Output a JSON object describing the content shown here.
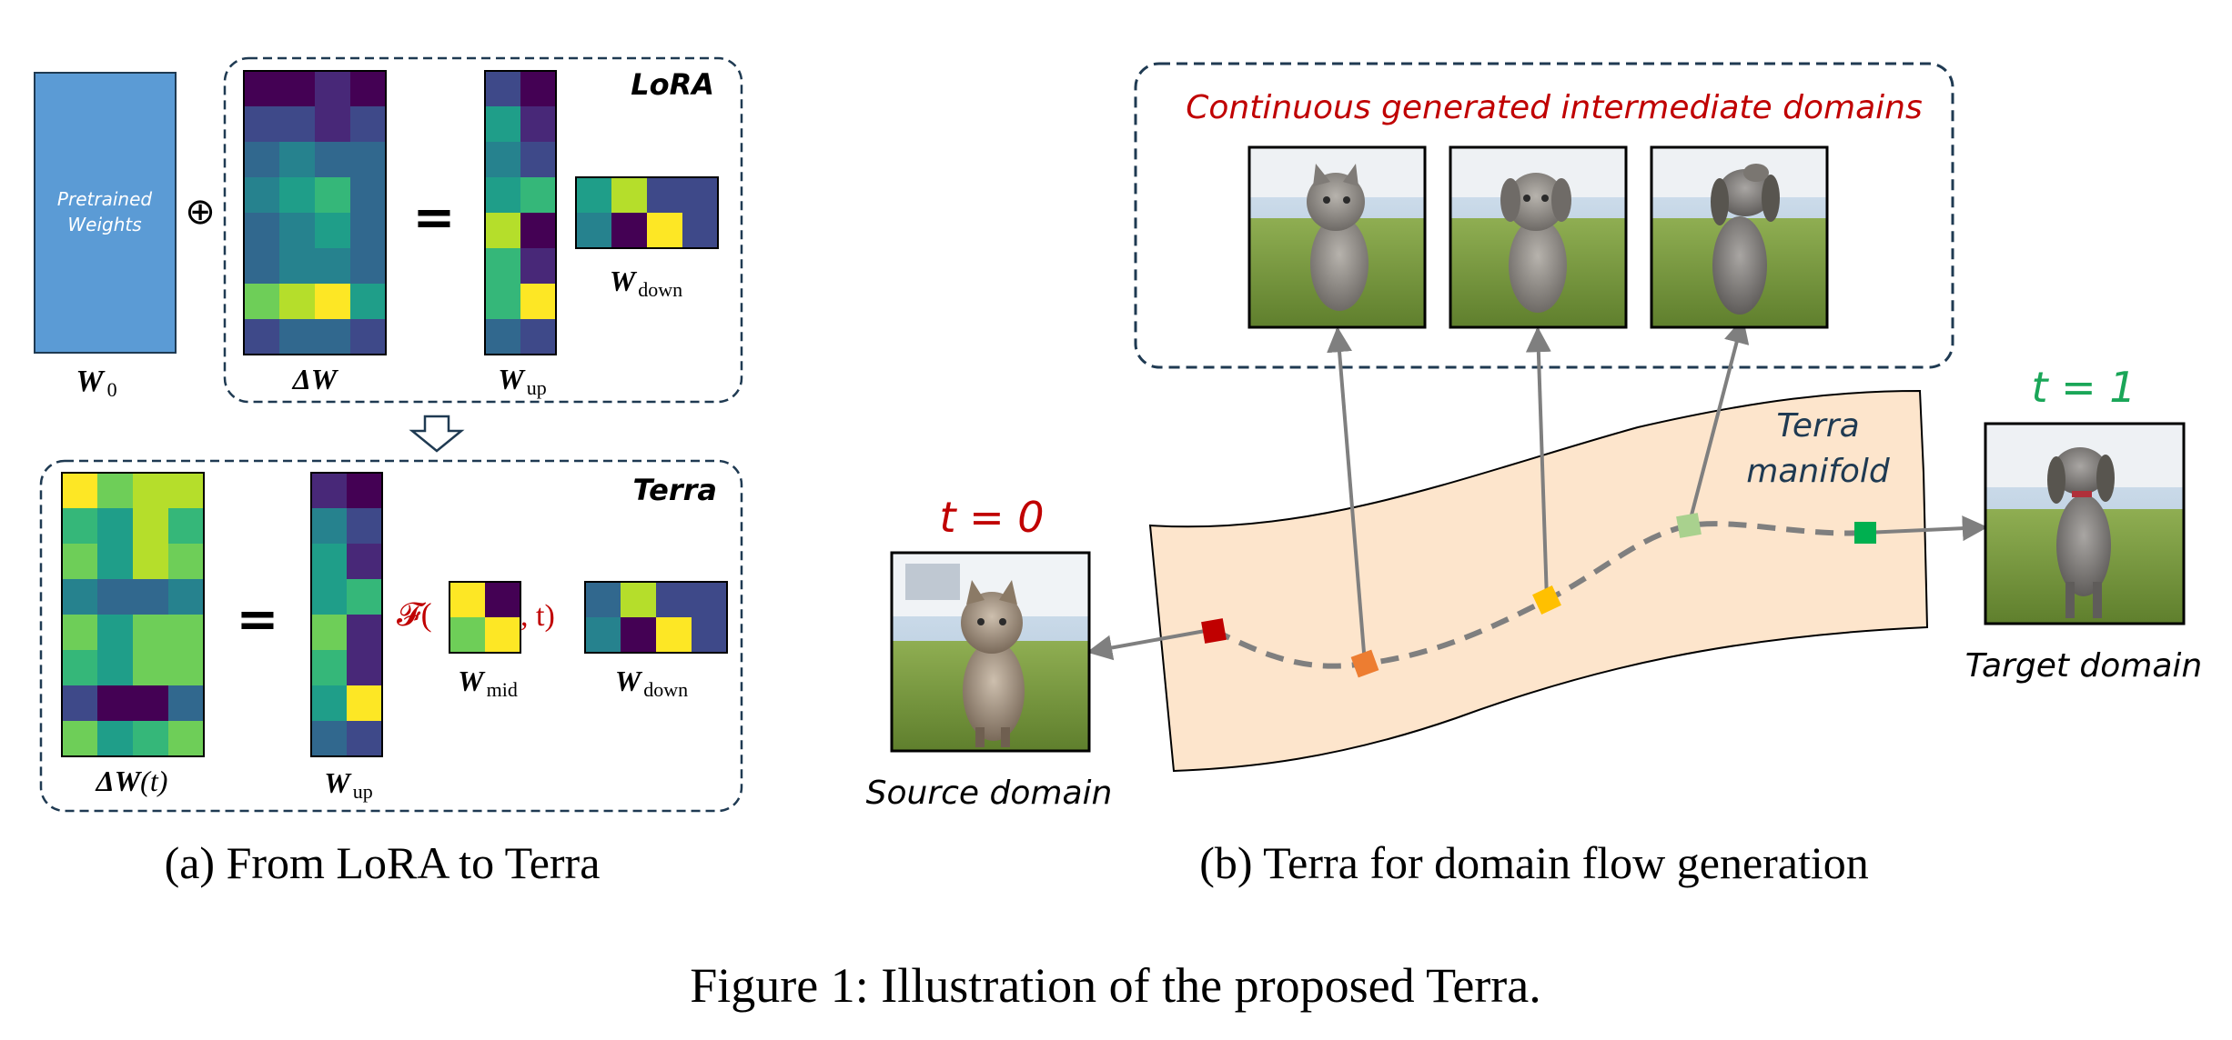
{
  "colors": {
    "viridis": [
      "#440154",
      "#482878",
      "#3e4989",
      "#31688e",
      "#26828e",
      "#1f9e89",
      "#35b779",
      "#6ece58",
      "#b5de2b",
      "#fde725"
    ],
    "pretrained_block": "#5b9bd5",
    "dashed_border": "#1f3a52",
    "manifold_fill": "#fde5cc",
    "red_text": "#c00000",
    "green_text": "#1aa658",
    "point_colors": [
      "#c00000",
      "#ed7d31",
      "#ffc000",
      "#a9d18e",
      "#00b050"
    ],
    "path_gray": "#7f7f7f"
  },
  "panel_a": {
    "pretrained_label_line1": "Pretrained",
    "pretrained_label_line2": "Weights",
    "w0_label": "W",
    "w0_sub": "0",
    "oplus": "⊕",
    "equals": "=",
    "lora_title": "LoRA",
    "terra_title": "Terra",
    "delta_w_label": "ΔW",
    "w_up_label": "W",
    "w_up_sub": "up",
    "w_down_label": "W",
    "w_down_sub": "down",
    "delta_w_t_label": "ΔW",
    "delta_w_t_suffix": "(t)",
    "f_symbol": "𝓕(",
    "f_close": ", t)",
    "w_mid_label": "W",
    "w_mid_sub": "mid",
    "lora_delta_matrix": [
      [
        0,
        0,
        1,
        0
      ],
      [
        2,
        2,
        1,
        2
      ],
      [
        3,
        4,
        3,
        3
      ],
      [
        4,
        5,
        6,
        3
      ],
      [
        3,
        4,
        5,
        3
      ],
      [
        3,
        4,
        4,
        3
      ],
      [
        7,
        8,
        9,
        5
      ],
      [
        2,
        3,
        3,
        2
      ]
    ],
    "lora_up_matrix": [
      [
        2,
        0
      ],
      [
        5,
        1
      ],
      [
        4,
        2
      ],
      [
        5,
        6
      ],
      [
        8,
        0
      ],
      [
        6,
        1
      ],
      [
        6,
        9
      ],
      [
        3,
        2
      ]
    ],
    "lora_down_matrix": [
      [
        5,
        8,
        2,
        2
      ],
      [
        4,
        0,
        9,
        2
      ]
    ],
    "terra_delta_matrix": [
      [
        9,
        7,
        8,
        8
      ],
      [
        6,
        5,
        8,
        6
      ],
      [
        7,
        5,
        8,
        7
      ],
      [
        4,
        3,
        3,
        4
      ],
      [
        7,
        5,
        7,
        7
      ],
      [
        6,
        5,
        7,
        7
      ],
      [
        2,
        0,
        0,
        3
      ],
      [
        7,
        5,
        6,
        7
      ]
    ],
    "terra_up_matrix": [
      [
        1,
        0
      ],
      [
        4,
        2
      ],
      [
        5,
        1
      ],
      [
        5,
        6
      ],
      [
        7,
        1
      ],
      [
        6,
        1
      ],
      [
        5,
        9
      ],
      [
        3,
        2
      ]
    ],
    "terra_mid_matrix": [
      [
        9,
        0
      ],
      [
        7,
        9
      ]
    ],
    "terra_down_matrix": [
      [
        3,
        8,
        2,
        2
      ],
      [
        4,
        0,
        9,
        2
      ]
    ],
    "caption": "(a) From LoRA to Terra"
  },
  "panel_b": {
    "intermediate_title": "Continuous generated intermediate domains",
    "manifold_label_line1": "Terra",
    "manifold_label_line2": "manifold",
    "t0_label": "t = 0",
    "t1_label": "t = 1",
    "source_label": "Source domain",
    "target_label": "Target domain",
    "caption": "(b) Terra for domain flow generation"
  },
  "figure_caption": "Figure 1: Illustration of the proposed Terra."
}
